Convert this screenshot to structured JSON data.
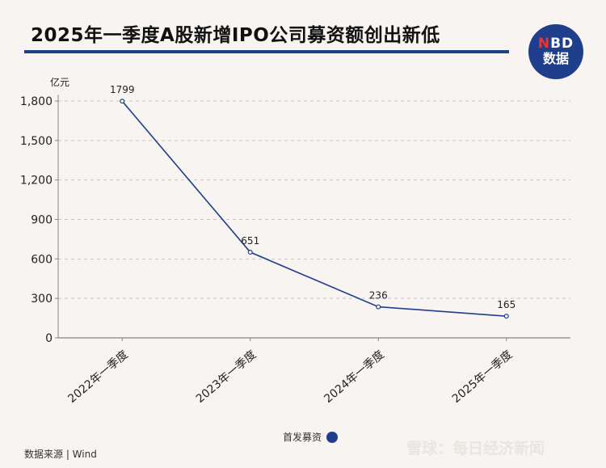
{
  "title": "2025年一季度A股新增IPO公司募资额创出新低",
  "logo": {
    "line1_n": "N",
    "line1_rest": "BD",
    "line2": "数据"
  },
  "source": "数据来源 | Wind",
  "footer_brand": "雪球：每日经济新闻",
  "colors": {
    "accent": "#1f3e8c"
  },
  "chart_data": {
    "type": "line",
    "title": "2025年一季度A股新增IPO公司募资额创出新低",
    "ylabel": "亿元",
    "xlabel": "",
    "ylim": [
      0,
      1800
    ],
    "yticks": [
      0,
      300,
      600,
      900,
      1200,
      1500,
      1800
    ],
    "ytick_labels": [
      "0",
      "300",
      "600",
      "900",
      "1,200",
      "1,500",
      "1,800"
    ],
    "grid": true,
    "legend": "bottom-center",
    "categories": [
      "2022年一季度",
      "2023年一季度",
      "2024年一季度",
      "2025年一季度"
    ],
    "series": [
      {
        "name": "首发募资",
        "values": [
          1799,
          651,
          236,
          165
        ],
        "color": "#1f3e8c"
      }
    ]
  }
}
